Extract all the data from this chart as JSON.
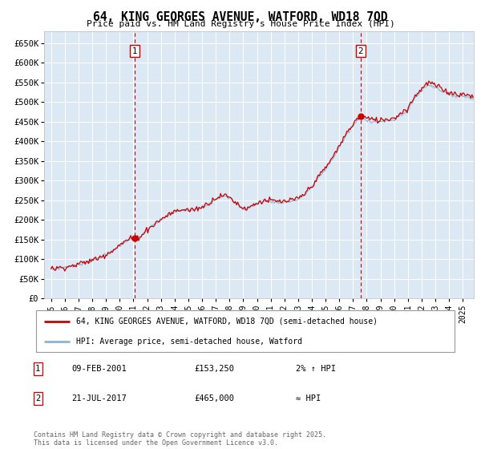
{
  "title": "64, KING GEORGES AVENUE, WATFORD, WD18 7QD",
  "subtitle": "Price paid vs. HM Land Registry's House Price Index (HPI)",
  "ylabel_ticks": [
    "£0",
    "£50K",
    "£100K",
    "£150K",
    "£200K",
    "£250K",
    "£300K",
    "£350K",
    "£400K",
    "£450K",
    "£500K",
    "£550K",
    "£600K",
    "£650K"
  ],
  "ytick_vals": [
    0,
    50000,
    100000,
    150000,
    200000,
    250000,
    300000,
    350000,
    400000,
    450000,
    500000,
    550000,
    600000,
    650000
  ],
  "ylim": [
    0,
    680000
  ],
  "plot_bg_color": "#dce9f5",
  "line_color_house": "#cc0000",
  "line_color_hpi": "#8ab4d4",
  "marker1_date_x": 2001.09,
  "marker1_y": 153250,
  "marker2_date_x": 2017.54,
  "marker2_y": 465000,
  "legend_line1": "64, KING GEORGES AVENUE, WATFORD, WD18 7QD (semi-detached house)",
  "legend_line2": "HPI: Average price, semi-detached house, Watford",
  "annotation1_label": "1",
  "annotation1_date": "09-FEB-2001",
  "annotation1_price": "£153,250",
  "annotation1_hpi": "2% ↑ HPI",
  "annotation2_label": "2",
  "annotation2_date": "21-JUL-2017",
  "annotation2_price": "£465,000",
  "annotation2_hpi": "≈ HPI",
  "footer": "Contains HM Land Registry data © Crown copyright and database right 2025.\nThis data is licensed under the Open Government Licence v3.0.",
  "xlim_start": 1994.5,
  "xlim_end": 2025.8,
  "xtick_years": [
    1995,
    1996,
    1997,
    1998,
    1999,
    2000,
    2001,
    2002,
    2003,
    2004,
    2005,
    2006,
    2007,
    2008,
    2009,
    2010,
    2011,
    2012,
    2013,
    2014,
    2015,
    2016,
    2017,
    2018,
    2019,
    2020,
    2021,
    2022,
    2023,
    2024,
    2025
  ]
}
